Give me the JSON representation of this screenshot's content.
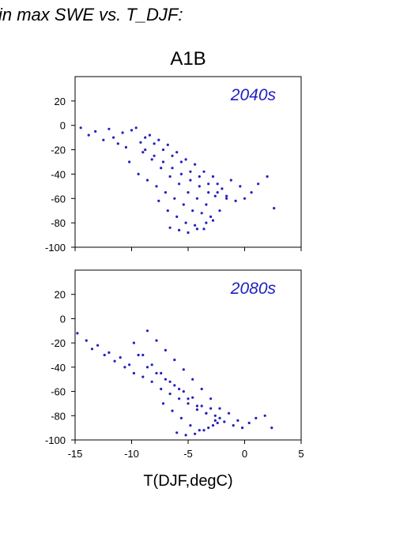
{
  "page_title": "in max SWE vs. T_DJF:",
  "figure": {
    "scenario_label": "A1B",
    "xlabel": "T(DJF,degC)",
    "colors": {
      "points": "#2020c0",
      "panel_label": "#2020c0",
      "axis": "#000000"
    }
  },
  "chart_data": [
    {
      "type": "scatter",
      "panel_label": "2040s",
      "xlim": [
        -15,
        5
      ],
      "ylim": [
        -100,
        40
      ],
      "xticks": [
        "-15",
        "-10",
        "-5",
        "0",
        "5"
      ],
      "yticks": [
        "-100",
        "-80",
        "-60",
        "-40",
        "-20",
        "0",
        "20"
      ],
      "xtick_labels_visible": false,
      "grid": false,
      "x": [
        -14.5,
        -13.8,
        -13.2,
        -12.5,
        -12.0,
        -11.6,
        -11.2,
        -10.8,
        -10.5,
        -10.0,
        -9.6,
        -9.2,
        -8.8,
        -8.4,
        -8.0,
        -7.6,
        -7.2,
        -6.8,
        -6.4,
        -6.0,
        -5.6,
        -5.2,
        -4.8,
        -4.4,
        -4.0,
        -3.6,
        -3.2,
        -2.8,
        -2.4,
        -2.0,
        -1.6,
        -1.2,
        -0.8,
        -0.4,
        0.0,
        0.6,
        1.2,
        2.0,
        2.6,
        -10.2,
        -9.4,
        -8.6,
        -7.8,
        -7.0,
        -6.2,
        -5.4,
        -4.6,
        -3.8,
        -3.0,
        -2.2,
        -9.0,
        -8.2,
        -7.4,
        -6.6,
        -5.8,
        -5.0,
        -4.2,
        -3.4,
        -2.6,
        -8.8,
        -8.0,
        -7.2,
        -6.4,
        -5.6,
        -4.8,
        -4.0,
        -3.2,
        -2.4,
        -1.6,
        -7.6,
        -6.8,
        -6.0,
        -5.2,
        -4.4,
        -3.6,
        -2.8,
        -6.6,
        -5.8,
        -5.0,
        -4.2,
        -3.4
      ],
      "y": [
        -2,
        -8,
        -5,
        -12,
        -3,
        -10,
        -15,
        -6,
        -18,
        -4,
        -2,
        -14,
        -20,
        -8,
        -25,
        -12,
        -30,
        -16,
        -35,
        -22,
        -40,
        -28,
        -45,
        -32,
        -50,
        -38,
        -55,
        -42,
        -48,
        -52,
        -58,
        -45,
        -62,
        -50,
        -60,
        -55,
        -48,
        -42,
        -68,
        -30,
        -40,
        -45,
        -50,
        -55,
        -60,
        -65,
        -70,
        -72,
        -75,
        -70,
        -22,
        -28,
        -35,
        -42,
        -48,
        -55,
        -60,
        -65,
        -58,
        -10,
        -15,
        -20,
        -25,
        -30,
        -38,
        -42,
        -48,
        -55,
        -60,
        -62,
        -70,
        -75,
        -80,
        -82,
        -85,
        -78,
        -84,
        -86,
        -88,
        -85,
        -80
      ]
    },
    {
      "type": "scatter",
      "panel_label": "2080s",
      "xlim": [
        -15,
        5
      ],
      "ylim": [
        -100,
        40
      ],
      "xticks": [
        "-15",
        "-10",
        "-5",
        "0",
        "5"
      ],
      "yticks": [
        "-100",
        "-80",
        "-60",
        "-40",
        "-20",
        "0",
        "20"
      ],
      "xtick_labels_visible": true,
      "grid": false,
      "x": [
        -14.8,
        -14.0,
        -13.5,
        -13.0,
        -12.4,
        -12.0,
        -11.5,
        -11.0,
        -10.6,
        -10.2,
        -9.8,
        -9.4,
        -9.0,
        -8.6,
        -8.2,
        -7.8,
        -7.4,
        -7.0,
        -6.6,
        -6.2,
        -5.8,
        -5.4,
        -5.0,
        -4.6,
        -4.2,
        -3.8,
        -3.4,
        -3.0,
        -2.6,
        -2.2,
        -1.8,
        -1.4,
        -1.0,
        -0.6,
        -0.2,
        0.4,
        1.0,
        1.8,
        2.4,
        -9.8,
        -9.0,
        -8.2,
        -7.4,
        -6.6,
        -5.8,
        -5.0,
        -4.2,
        -3.4,
        -2.6,
        -8.6,
        -7.8,
        -7.0,
        -6.2,
        -5.4,
        -4.6,
        -3.8,
        -3.0,
        -2.2,
        -7.2,
        -6.4,
        -5.6,
        -4.8,
        -4.0,
        -3.2,
        -2.4,
        -6.0,
        -5.2,
        -4.4,
        -3.6,
        -2.8
      ],
      "y": [
        -12,
        -18,
        -25,
        -22,
        -30,
        -28,
        -35,
        -32,
        -40,
        -38,
        -45,
        -30,
        -48,
        -40,
        -52,
        -45,
        -58,
        -50,
        -62,
        -55,
        -66,
        -60,
        -70,
        -65,
        -75,
        -72,
        -78,
        -74,
        -80,
        -82,
        -85,
        -78,
        -88,
        -84,
        -90,
        -86,
        -82,
        -80,
        -90,
        -20,
        -30,
        -38,
        -45,
        -52,
        -58,
        -66,
        -72,
        -78,
        -84,
        -10,
        -18,
        -26,
        -34,
        -42,
        -50,
        -58,
        -66,
        -74,
        -70,
        -76,
        -82,
        -88,
        -92,
        -90,
        -86,
        -94,
        -96,
        -95,
        -92,
        -88
      ]
    }
  ]
}
